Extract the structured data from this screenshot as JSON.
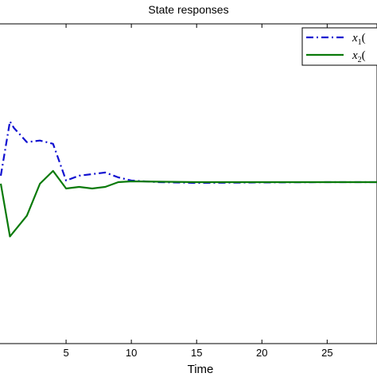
{
  "chart_data": {
    "type": "line",
    "title": "State responses",
    "xlabel": "Time",
    "ylabel": "",
    "xlim": [
      0,
      29
    ],
    "ylim": [
      -1,
      1
    ],
    "xticks": [
      5,
      10,
      15,
      20,
      25
    ],
    "xtick_labels": [
      "5",
      "10",
      "15",
      "20",
      "25"
    ],
    "grid": false,
    "legend_position": "top-right",
    "series": [
      {
        "name": "x1(",
        "legend_main": "x",
        "legend_sub": "1",
        "legend_suffix": "(",
        "color": "#1010d0",
        "style": "dash-dot",
        "x": [
          0,
          0.7,
          1,
          2,
          3,
          4,
          5,
          6,
          7,
          8,
          9,
          10,
          12,
          15,
          20,
          25,
          29
        ],
        "y": [
          0.05,
          0.39,
          0.35,
          0.26,
          0.27,
          0.25,
          0.02,
          0.05,
          0.06,
          0.07,
          0.04,
          0.02,
          0.01,
          0.005,
          0.008,
          0.01,
          0.01
        ]
      },
      {
        "name": "x2(",
        "legend_main": "x",
        "legend_sub": "2",
        "legend_suffix": "(",
        "color": "#0a7a0a",
        "style": "solid",
        "x": [
          0,
          0.7,
          1,
          2,
          3,
          4,
          5,
          6,
          7,
          8,
          9,
          10,
          15,
          20,
          25,
          29
        ],
        "y": [
          0.0,
          -0.33,
          -0.3,
          -0.2,
          0.0,
          0.08,
          -0.03,
          -0.02,
          -0.03,
          -0.02,
          0.01,
          0.015,
          0.01,
          0.01,
          0.01,
          0.01
        ]
      }
    ]
  }
}
